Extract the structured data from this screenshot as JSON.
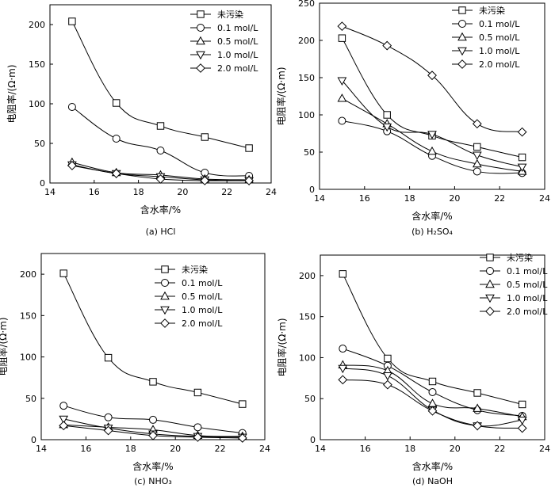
{
  "chart_data": [
    {
      "type": "line",
      "caption": "(a) HCl",
      "xlabel": "含水率/%",
      "ylabel": "电阻率/(Ω·m)",
      "xlim": [
        14,
        24
      ],
      "ylim": [
        0,
        225
      ],
      "xticks": [
        14,
        16,
        18,
        20,
        22,
        24
      ],
      "yticks": [
        0,
        50,
        100,
        150,
        200
      ],
      "legend_position": "top-right",
      "x": [
        15,
        17,
        19,
        21,
        23
      ],
      "series": [
        {
          "name": "未污染",
          "marker": "square",
          "values": [
            204,
            101,
            72,
            58,
            44
          ]
        },
        {
          "name": "0.1 mol/L",
          "marker": "circle",
          "values": [
            96,
            56,
            41,
            13,
            9
          ]
        },
        {
          "name": "0.5 mol/L",
          "marker": "triangle-up",
          "values": [
            26,
            13,
            10,
            5,
            4
          ]
        },
        {
          "name": "1.0 mol/L",
          "marker": "triangle-down",
          "values": [
            23,
            12,
            8,
            4,
            3
          ]
        },
        {
          "name": "2.0 mol/L",
          "marker": "diamond",
          "values": [
            22,
            12,
            5,
            3,
            3
          ]
        }
      ]
    },
    {
      "type": "line",
      "caption": "(b) H₂SO₄",
      "xlabel": "含水率/%",
      "ylabel": "电阻率/(Ω·m)",
      "xlim": [
        14,
        24
      ],
      "ylim": [
        0,
        250
      ],
      "xticks": [
        14,
        16,
        18,
        20,
        22,
        24
      ],
      "yticks": [
        0,
        50,
        100,
        150,
        200,
        250
      ],
      "legend_position": "top-right",
      "x": [
        15,
        17,
        19,
        21,
        23
      ],
      "series": [
        {
          "name": "未污染",
          "marker": "square",
          "values": [
            203,
            100,
            72,
            57,
            43
          ]
        },
        {
          "name": "0.1 mol/L",
          "marker": "circle",
          "values": [
            92,
            78,
            45,
            24,
            22
          ]
        },
        {
          "name": "0.5 mol/L",
          "marker": "triangle-up",
          "values": [
            122,
            88,
            51,
            34,
            24
          ]
        },
        {
          "name": "1.0 mol/L",
          "marker": "triangle-down",
          "values": [
            146,
            84,
            74,
            46,
            30
          ]
        },
        {
          "name": "2.0 mol/L",
          "marker": "diamond",
          "values": [
            219,
            193,
            153,
            88,
            77
          ]
        }
      ]
    },
    {
      "type": "line",
      "caption": "(c) NHO₃",
      "xlabel": "含水率/%",
      "ylabel": "电阻率/(Ω·m)",
      "xlim": [
        14,
        24
      ],
      "ylim": [
        0,
        225
      ],
      "xticks": [
        14,
        16,
        18,
        20,
        22,
        24
      ],
      "yticks": [
        0,
        50,
        100,
        150,
        200
      ],
      "legend_position": "top-right",
      "x": [
        15,
        17,
        19,
        21,
        23
      ],
      "series": [
        {
          "name": "未污染",
          "marker": "square",
          "values": [
            201,
            99,
            70,
            57,
            43
          ]
        },
        {
          "name": "0.1 mol/L",
          "marker": "circle",
          "values": [
            41,
            27,
            24,
            15,
            8
          ]
        },
        {
          "name": "0.5 mol/L",
          "marker": "triangle-up",
          "values": [
            18,
            15,
            12,
            5,
            4
          ]
        },
        {
          "name": "1.0 mol/L",
          "marker": "triangle-down",
          "values": [
            25,
            14,
            7,
            4,
            3
          ]
        },
        {
          "name": "2.0 mol/L",
          "marker": "diamond",
          "values": [
            17,
            11,
            5,
            3,
            2
          ]
        }
      ]
    },
    {
      "type": "line",
      "caption": "(d) NaOH",
      "xlabel": "含水率/%",
      "ylabel": "电阻率/(Ω·m)",
      "xlim": [
        14,
        24
      ],
      "ylim": [
        0,
        225
      ],
      "xticks": [
        14,
        16,
        18,
        20,
        22,
        24
      ],
      "yticks": [
        0,
        50,
        100,
        150,
        200
      ],
      "legend_position": "top-right",
      "x": [
        15,
        17,
        19,
        21,
        23
      ],
      "series": [
        {
          "name": "未污染",
          "marker": "square",
          "values": [
            202,
            99,
            71,
            57,
            43
          ]
        },
        {
          "name": "0.1 mol/L",
          "marker": "circle",
          "values": [
            111,
            90,
            58,
            36,
            29
          ]
        },
        {
          "name": "0.5 mol/L",
          "marker": "triangle-up",
          "values": [
            91,
            84,
            44,
            38,
            28
          ]
        },
        {
          "name": "1.0 mol/L",
          "marker": "triangle-down",
          "values": [
            87,
            78,
            36,
            17,
            24
          ]
        },
        {
          "name": "2.0 mol/L",
          "marker": "diamond",
          "values": [
            73,
            67,
            35,
            17,
            14
          ]
        }
      ]
    }
  ]
}
